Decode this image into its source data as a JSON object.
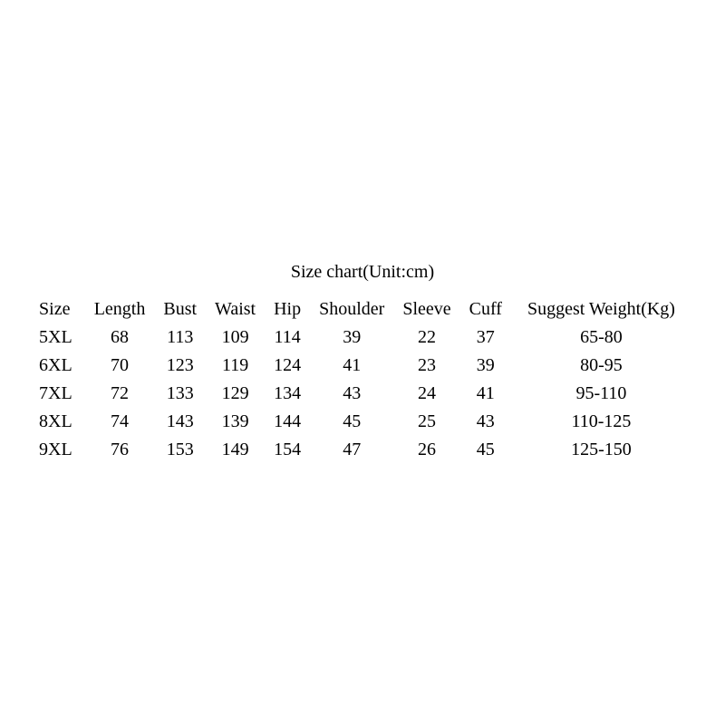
{
  "title": "Size chart(Unit:cm)",
  "table": {
    "type": "table",
    "background_color": "#ffffff",
    "text_color": "#000000",
    "font_family": "Times New Roman",
    "title_fontsize": 20,
    "cell_fontsize": 20,
    "columns": [
      {
        "key": "size",
        "label": "Size",
        "align": "left"
      },
      {
        "key": "length",
        "label": "Length",
        "align": "center"
      },
      {
        "key": "bust",
        "label": "Bust",
        "align": "center"
      },
      {
        "key": "waist",
        "label": "Waist",
        "align": "center"
      },
      {
        "key": "hip",
        "label": "Hip",
        "align": "center"
      },
      {
        "key": "shoulder",
        "label": "Shoulder",
        "align": "center"
      },
      {
        "key": "sleeve",
        "label": "Sleeve",
        "align": "center"
      },
      {
        "key": "cuff",
        "label": "Cuff",
        "align": "center"
      },
      {
        "key": "suggest",
        "label": "Suggest Weight(Kg)",
        "align": "center"
      }
    ],
    "rows": [
      {
        "size": "5XL",
        "length": "68",
        "bust": "113",
        "waist": "109",
        "hip": "114",
        "shoulder": "39",
        "sleeve": "22",
        "cuff": "37",
        "suggest": "65-80"
      },
      {
        "size": "6XL",
        "length": "70",
        "bust": "123",
        "waist": "119",
        "hip": "124",
        "shoulder": "41",
        "sleeve": "23",
        "cuff": "39",
        "suggest": "80-95"
      },
      {
        "size": "7XL",
        "length": "72",
        "bust": "133",
        "waist": "129",
        "hip": "134",
        "shoulder": "43",
        "sleeve": "24",
        "cuff": "41",
        "suggest": "95-110"
      },
      {
        "size": "8XL",
        "length": "74",
        "bust": "143",
        "waist": "139",
        "hip": "144",
        "shoulder": "45",
        "sleeve": "25",
        "cuff": "43",
        "suggest": "110-125"
      },
      {
        "size": "9XL",
        "length": "76",
        "bust": "153",
        "waist": "149",
        "hip": "154",
        "shoulder": "47",
        "sleeve": "26",
        "cuff": "45",
        "suggest": "125-150"
      }
    ]
  }
}
